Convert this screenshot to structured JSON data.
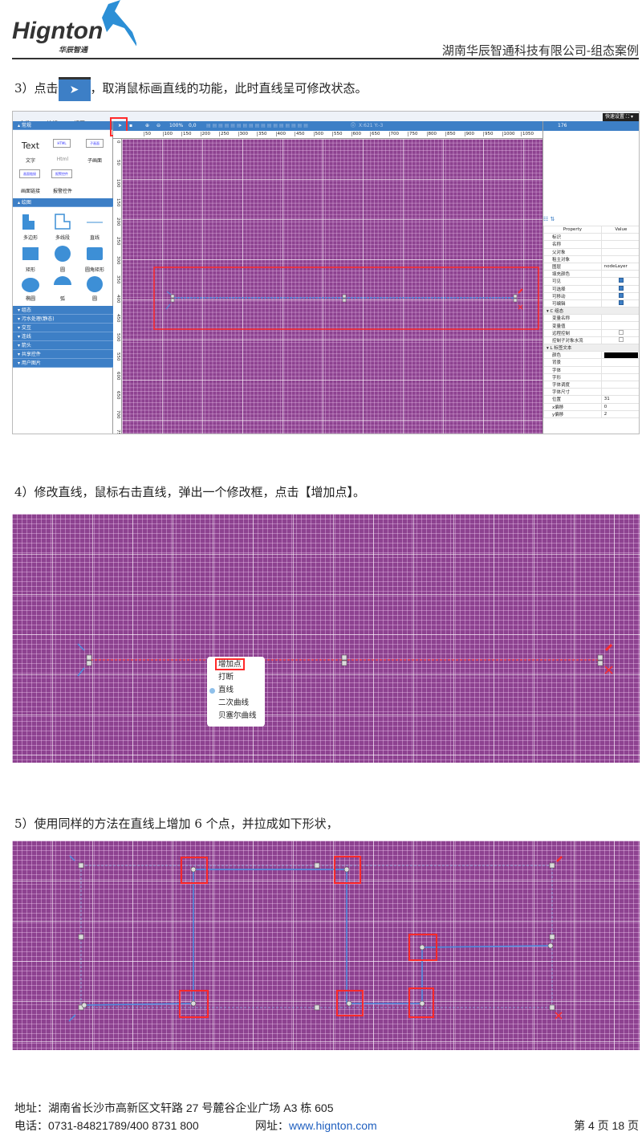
{
  "header": {
    "logo_text": "Hignton",
    "logo_sub": "华辰智通",
    "company": "湖南华辰智通科技有限公司-组态案例"
  },
  "steps": {
    "s3_before": "3）点击",
    "s3_after": "，取消鼠标画直线的功能，此时直线呈可修改状态。",
    "s4": "4）修改直线，鼠标右击直线，弹出一个修改框，点击【增加点】。",
    "s5": "5）使用同样的方法在直线上增加 6 个点，并拉成如下形状，"
  },
  "editor": {
    "menu": [
      "文件",
      "编辑",
      "视图"
    ],
    "quick_button": "快速设置",
    "left_panel": {
      "sec_general": "常规",
      "general_items": [
        "文字",
        "Html",
        "子画面",
        "画面链接",
        "报警控件"
      ],
      "text_preview": "Text",
      "html_preview": "HTML",
      "sub_preview": "子画面",
      "link_preview": "画面链接",
      "alarm_preview": "报警控件",
      "sec_draw": "绘图",
      "draw_items": [
        "多边形",
        "多线段",
        "直线",
        "矩形",
        "圆",
        "圆角矩形",
        "椭圆",
        "弧",
        "圆"
      ],
      "sections": [
        "组态",
        "污水处理(静态)",
        "交互",
        "连线",
        "箭头",
        "共享控件",
        "用户图片"
      ]
    },
    "toolbar": {
      "zoom": "100%",
      "offset": "0,0",
      "coords": "X:621 Y:-3"
    },
    "ruler_top": [
      "50",
      "100",
      "150",
      "200",
      "250",
      "300",
      "350",
      "400",
      "450",
      "500",
      "550",
      "600",
      "650",
      "700",
      "750",
      "800",
      "850",
      "900",
      "950",
      "1000",
      "1050"
    ],
    "ruler_left": [
      "0",
      "50",
      "100",
      "150",
      "200",
      "250",
      "300",
      "350",
      "400",
      "450",
      "500",
      "550",
      "600",
      "650",
      "700",
      "750"
    ],
    "right_panel": {
      "header": "176",
      "col_property": "Property",
      "col_value": "Value",
      "rows": [
        {
          "k": "标识",
          "v": ""
        },
        {
          "k": "名称",
          "v": ""
        },
        {
          "k": "父对象",
          "v": ""
        },
        {
          "k": "租主对象",
          "v": ""
        },
        {
          "k": "图层",
          "v": "nodeLayer"
        },
        {
          "k": "填充颜色",
          "v": ""
        },
        {
          "k": "可见",
          "check": true
        },
        {
          "k": "可选择",
          "check": true
        },
        {
          "k": "可移动",
          "check": true
        },
        {
          "k": "可编辑",
          "check": true
        },
        {
          "k": "C 组态",
          "group": true
        },
        {
          "k": "变量名称",
          "v": ""
        },
        {
          "k": "变量值",
          "v": ""
        },
        {
          "k": "远程控制",
          "check": false
        },
        {
          "k": "控制子对象水流",
          "check": false
        },
        {
          "k": "L 标签文本",
          "group": true
        },
        {
          "k": "颜色",
          "color": "#000000"
        },
        {
          "k": "背景",
          "v": ""
        },
        {
          "k": "字体",
          "v": ""
        },
        {
          "k": "字形",
          "v": ""
        },
        {
          "k": "字体调度",
          "v": ""
        },
        {
          "k": "字体尺寸",
          "v": ""
        },
        {
          "k": "位置",
          "v": "31"
        },
        {
          "k": "x偏移",
          "v": "0"
        },
        {
          "k": "y偏移",
          "v": "2"
        }
      ]
    }
  },
  "context_menu": {
    "items": [
      "增加点",
      "打断",
      "直线",
      "二次曲线",
      "贝塞尔曲线"
    ],
    "selected": "直线"
  },
  "colors": {
    "accent": "#3d7fc6",
    "canvas": "#8d4290",
    "highlight": "#ff2a2a",
    "line": "#4a90e2"
  },
  "footer": {
    "address": "地址：湖南省长沙市高新区文轩路 27 号麓谷企业广场 A3 栋 605",
    "phone": "电话：0731-84821789/400 8731 800",
    "web_label": "网址：",
    "web": "www.hignton.com",
    "page": "第 4 页 18 页"
  }
}
